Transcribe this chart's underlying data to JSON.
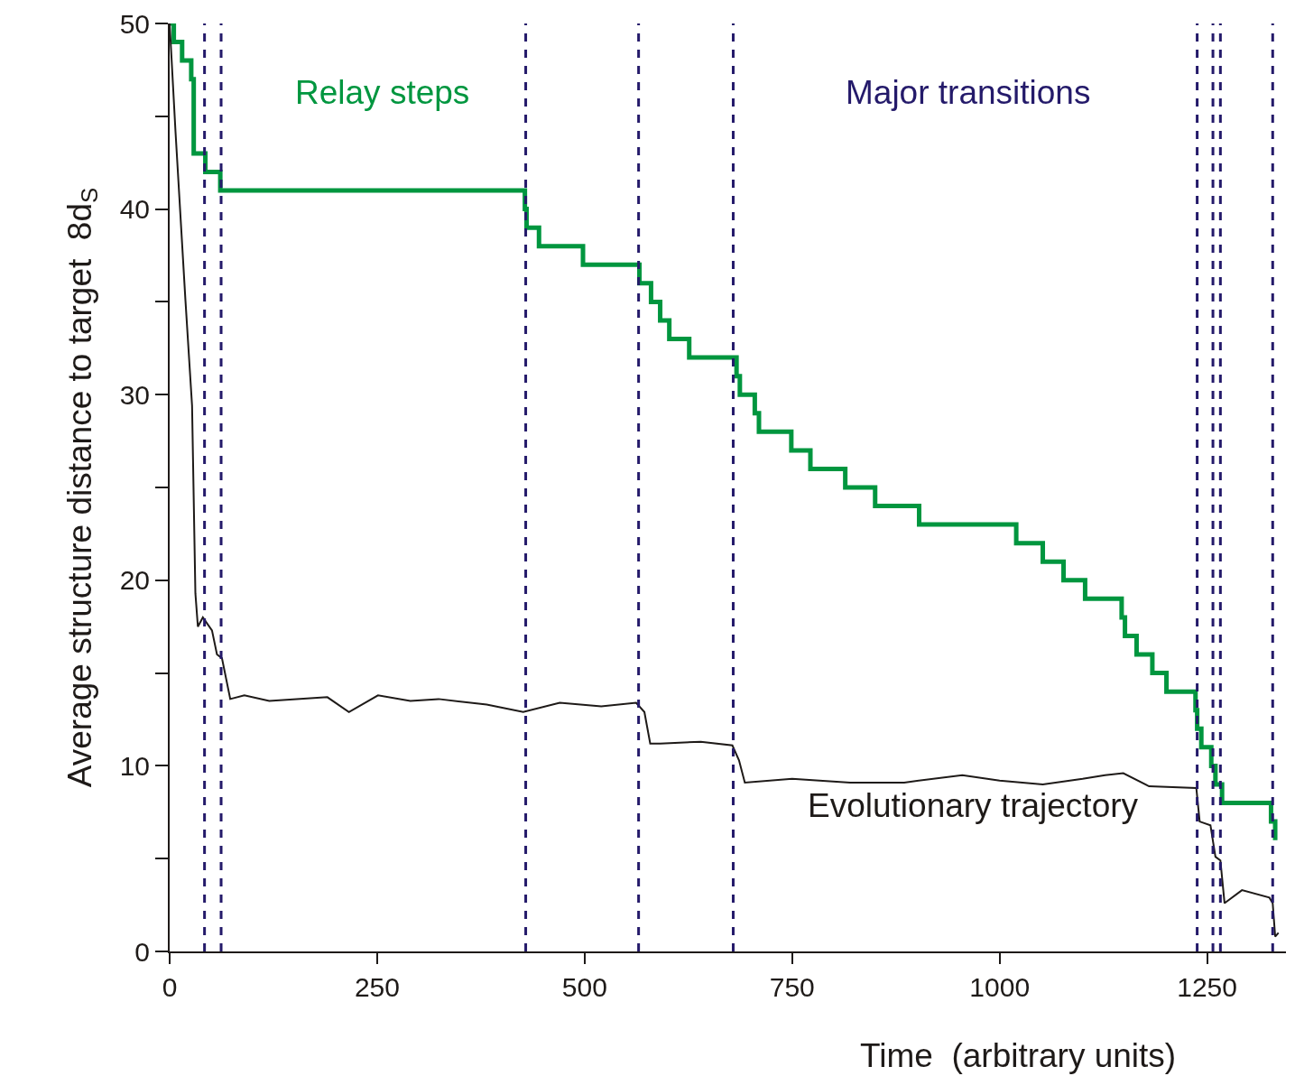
{
  "chart_data": {
    "type": "line",
    "xlabel": "Time  (arbitrary units)",
    "ylabel": "Average structure distance to target  8d$_{S}$",
    "xlim": [
      0,
      1345
    ],
    "ylim": [
      0,
      50
    ],
    "xticks": [
      0,
      250,
      500,
      750,
      1000,
      1250
    ],
    "yticks": [
      0,
      {
        "value": 5,
        "label": null
      },
      10,
      {
        "value": 15,
        "label": null
      },
      20,
      {
        "value": 25,
        "label": null
      },
      30,
      {
        "value": 35,
        "label": null
      },
      40,
      {
        "value": 45,
        "label": null
      },
      50
    ],
    "grid": false,
    "marker": "none",
    "series": [
      {
        "type": "step",
        "color": "#00963f",
        "x": [
          0,
          5,
          15,
          26,
          29,
          43,
          61,
          428,
          430,
          445,
          498,
          566,
          580,
          591,
          602,
          626,
          683,
          687,
          705,
          710,
          749,
          772,
          814,
          850,
          903,
          1020,
          1052,
          1077,
          1103,
          1147,
          1151,
          1165,
          1184,
          1201,
          1236,
          1238,
          1243,
          1255,
          1260,
          1268,
          1327,
          1332
        ],
        "values": [
          50,
          49,
          48,
          47,
          43,
          42,
          41,
          40,
          39,
          38,
          37,
          36,
          35,
          34,
          33,
          32,
          31,
          30,
          29,
          28,
          27,
          26,
          25,
          24,
          23,
          22,
          21,
          20,
          19,
          18,
          17,
          16,
          15,
          14,
          13,
          12,
          11,
          10,
          9,
          8,
          7,
          6
        ]
      },
      {
        "color": "#1e1a18",
        "x": [
          0,
          7,
          19,
          27,
          31,
          34,
          40,
          51,
          57,
          63,
          73,
          90,
          120,
          153,
          190,
          216,
          251,
          290,
          324,
          382,
          426,
          470,
          520,
          562,
          572,
          579,
          591,
          640,
          678,
          686,
          693,
          750,
          820,
          885,
          955,
          1000,
          1052,
          1100,
          1127,
          1149,
          1180,
          1237,
          1241,
          1254,
          1260,
          1266,
          1271,
          1292,
          1325,
          1329,
          1332,
          1336
        ],
        "values": [
          50,
          44.2,
          35.1,
          29.4,
          19.3,
          17.5,
          18.0,
          17.3,
          16.0,
          15.8,
          13.6,
          13.8,
          13.5,
          13.6,
          13.7,
          12.9,
          13.8,
          13.5,
          13.6,
          13.3,
          12.9,
          13.4,
          13.2,
          13.4,
          12.9,
          11.2,
          11.2,
          11.3,
          11.1,
          10.3,
          9.1,
          9.3,
          9.1,
          9.1,
          9.5,
          9.2,
          9.0,
          9.3,
          9.5,
          9.6,
          8.9,
          8.8,
          7.0,
          6.8,
          5.1,
          4.9,
          2.6,
          3.3,
          2.9,
          2.6,
          0.8,
          1.0
        ]
      }
    ],
    "ref_lines": [
      {
        "axis": "x",
        "value": 42,
        "color": "#241a6a",
        "line_style": "dashed"
      },
      {
        "axis": "x",
        "value": 62,
        "color": "#241a6a",
        "line_style": "dashed"
      },
      {
        "axis": "x",
        "value": 429,
        "color": "#241a6a",
        "line_style": "dashed"
      },
      {
        "axis": "x",
        "value": 565,
        "color": "#241a6a",
        "line_style": "dashed"
      },
      {
        "axis": "x",
        "value": 679,
        "color": "#241a6a",
        "line_style": "dashed"
      },
      {
        "axis": "x",
        "value": 1238,
        "color": "#241a6a",
        "line_style": "dashed"
      },
      {
        "axis": "x",
        "value": 1257,
        "color": "#241a6a",
        "line_style": "dashed"
      },
      {
        "axis": "x",
        "value": 1266,
        "color": "#241a6a",
        "line_style": "dashed"
      },
      {
        "axis": "x",
        "value": 1329,
        "color": "#241a6a",
        "line_style": "dashed"
      }
    ],
    "annotations": [
      "Relay steps",
      "Major transitions",
      "Evolutionary trajectory"
    ]
  }
}
